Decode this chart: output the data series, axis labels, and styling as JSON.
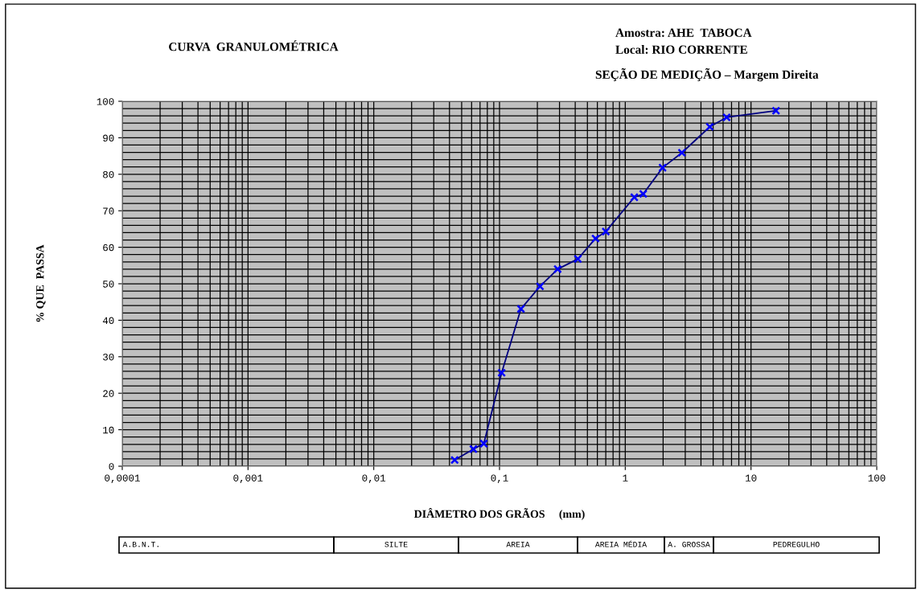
{
  "chart_data": {
    "type": "line",
    "title": "CURVA  GRANULOMÉTRICA",
    "xlabel": "DIÂMETRO DOS GRÃOS     (mm)",
    "ylabel": "% QUE  PASSA",
    "annotations": [
      "Amostra: AHE  TABOCA",
      "Local: RIO CORRENTE",
      "SEÇÃO DE MEDIÇÃO – Margem Direita",
      "A.B.N.T.",
      "SILTE",
      "AREIA",
      "AREIA MÉDIA",
      "A. GROSSA",
      "PEDREGULHO"
    ],
    "log": "x",
    "grid": true,
    "marker": "cross",
    "line_style": "solid",
    "xlim": [
      0.0001,
      100
    ],
    "xticks": [
      {
        "value": 0.0001,
        "label": "0,0001"
      },
      {
        "value": 0.001,
        "label": "0,001"
      },
      {
        "value": 0.01,
        "label": "0,01"
      },
      {
        "value": 0.1,
        "label": "0,1"
      },
      1,
      10,
      100
    ],
    "ylim": [
      0,
      100
    ],
    "yticks": [
      0,
      10,
      20,
      30,
      40,
      50,
      60,
      70,
      80,
      90,
      100
    ],
    "x": [
      0.044,
      0.062,
      0.075,
      0.104,
      0.148,
      0.21,
      0.29,
      0.42,
      0.58,
      0.7,
      1.18,
      1.39,
      1.98,
      2.82,
      4.7,
      6.4,
      15.8
    ],
    "series": [
      {
        "color": "#000080",
        "values": [
          1.7,
          4.7,
          6.2,
          25.6,
          43.1,
          49.3,
          54.0,
          56.8,
          62.4,
          64.3,
          73.7,
          74.6,
          81.8,
          85.9,
          93.0,
          95.6,
          97.4
        ]
      }
    ]
  }
}
